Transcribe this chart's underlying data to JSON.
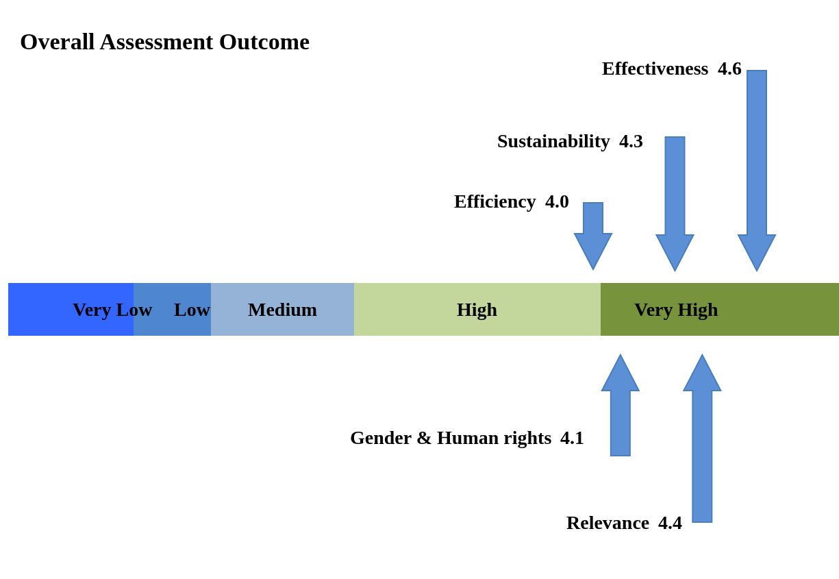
{
  "chart_data": {
    "type": "other",
    "title": "Overall Assessment Outcome",
    "categories": [
      "Effectiveness",
      "Sustainability",
      "Efficiency",
      "Gender & Human rights",
      "Relevance"
    ],
    "values": [
      4.6,
      4.3,
      4.0,
      4.1,
      4.4
    ],
    "value_labels": [
      "4.6",
      "4.3",
      "4.0",
      "4.1",
      "4.4"
    ],
    "color": "#5b8fd6",
    "bands": [
      {
        "axis": "x",
        "label": "Very Low",
        "color": "#3366ff"
      },
      {
        "axis": "x",
        "label": "Low",
        "color": "#4f86d0"
      },
      {
        "axis": "x",
        "label": "Medium",
        "color": "#95b3d7"
      },
      {
        "axis": "x",
        "label": "High",
        "color": "#c3d69b"
      },
      {
        "axis": "x",
        "label": "Very High",
        "color": "#77933c"
      }
    ]
  }
}
